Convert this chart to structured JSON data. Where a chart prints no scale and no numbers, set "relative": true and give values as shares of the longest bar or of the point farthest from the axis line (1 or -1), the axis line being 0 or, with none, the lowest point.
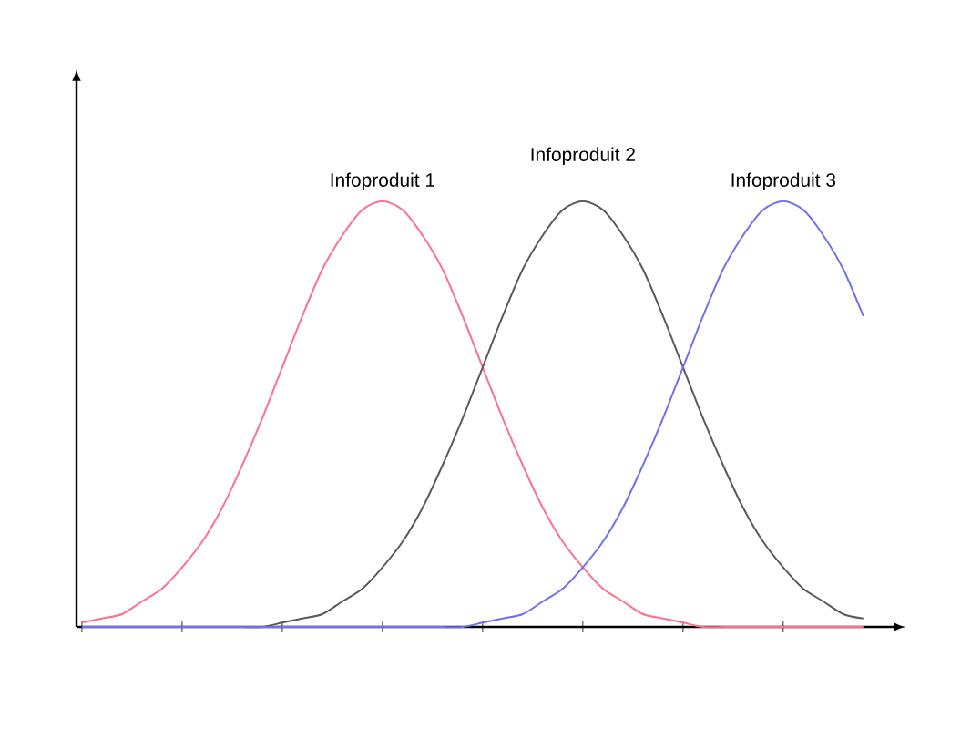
{
  "chart_data": {
    "type": "line",
    "relative": true,
    "legend": false,
    "grid": false,
    "categories": [
      null,
      null,
      null,
      null,
      null,
      null,
      null,
      null,
      null,
      null,
      null,
      null,
      null,
      null,
      null,
      null,
      null,
      null,
      null,
      null,
      null,
      null,
      null,
      null,
      null,
      null,
      null,
      null,
      null,
      null,
      null,
      null,
      null,
      null,
      null,
      null,
      null,
      null,
      null,
      null
    ],
    "series": [
      {
        "name": "Infoproduit 1",
        "color": "#ff6f8f",
        "values": [
          0.01,
          0.02,
          0.03,
          0.06,
          0.09,
          0.14,
          0.2,
          0.28,
          0.38,
          0.49,
          0.61,
          0.73,
          0.84,
          0.92,
          0.98,
          1,
          0.98,
          0.92,
          0.84,
          0.73,
          0.61,
          0.49,
          0.38,
          0.28,
          0.2,
          0.14,
          0.09,
          0.06,
          0.03,
          0.02,
          0.01,
          0,
          0,
          0,
          0,
          0,
          0,
          0,
          0,
          0
        ]
      },
      {
        "name": "Infoproduit 2",
        "color": "#5a5a5a",
        "values": [
          0,
          0,
          0,
          0,
          0,
          0,
          0,
          0,
          0,
          0,
          0.01,
          0.02,
          0.03,
          0.06,
          0.09,
          0.14,
          0.2,
          0.28,
          0.38,
          0.49,
          0.61,
          0.73,
          0.84,
          0.92,
          0.98,
          1,
          0.98,
          0.92,
          0.84,
          0.73,
          0.61,
          0.49,
          0.38,
          0.28,
          0.2,
          0.14,
          0.09,
          0.06,
          0.03,
          0.02
        ]
      },
      {
        "name": "Infoproduit 3",
        "color": "#7070f0",
        "values": [
          0,
          0,
          0,
          0,
          0,
          0,
          0,
          0,
          0,
          0,
          0,
          0,
          0,
          0,
          0,
          0,
          0,
          0,
          0,
          0,
          0.01,
          0.02,
          0.03,
          0.06,
          0.09,
          0.14,
          0.2,
          0.28,
          0.38,
          0.49,
          0.61,
          0.73,
          0.84,
          0.92,
          0.98,
          1,
          0.98,
          0.92,
          0.84,
          0.73
        ]
      }
    ]
  }
}
